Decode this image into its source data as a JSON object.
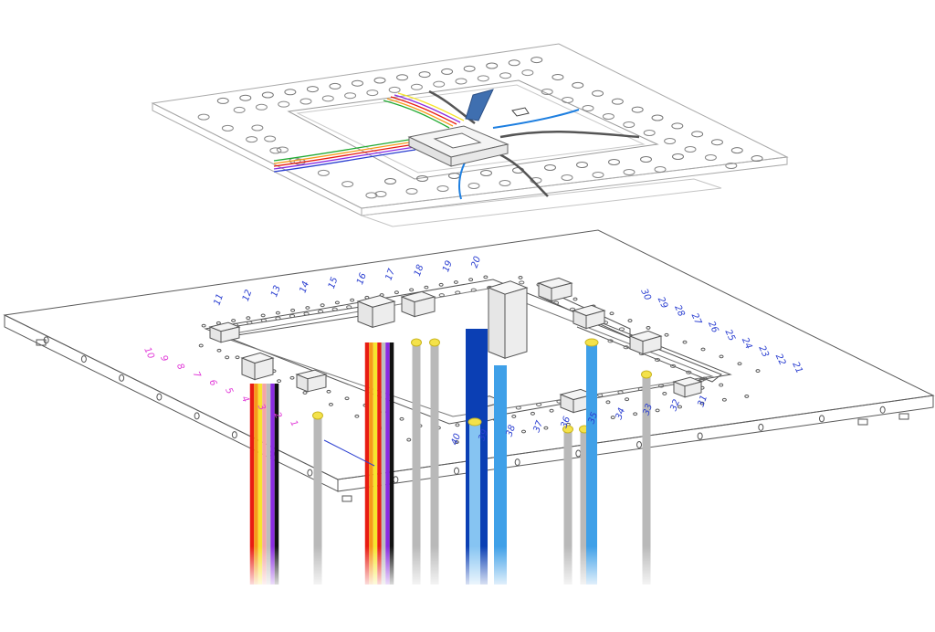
{
  "colors": {
    "line": "#6b6b6b",
    "line_light": "#a9a9a9",
    "cable_grey": "#b9b9b9",
    "cable_light_blue": "#3fa0e8",
    "cable_deep_blue": "#0b3fb4",
    "ferrule": "#f4e24a",
    "label_blue": "#2b3fd1",
    "label_magenta": "#e13ad8",
    "ribbon_red": "#e81c12",
    "ribbon_orange": "#f79a1a",
    "ribbon_yellow": "#f6e52d",
    "ribbon_violet": "#8a2be2",
    "ribbon_black": "#111111"
  },
  "port_labels": {
    "top_edge": [
      "11",
      "12",
      "13",
      "14",
      "15",
      "16",
      "17",
      "18",
      "19",
      "20"
    ],
    "left_side": [
      "10",
      "9",
      "8",
      "7",
      "6",
      "5",
      "4",
      "3",
      "2",
      "1"
    ],
    "right_side": [
      "21",
      "22",
      "23",
      "24",
      "25",
      "26",
      "27",
      "28",
      "29",
      "30"
    ],
    "front_edge": [
      "31",
      "32",
      "33",
      "34",
      "35",
      "36",
      "37",
      "38",
      "39",
      "40"
    ]
  }
}
